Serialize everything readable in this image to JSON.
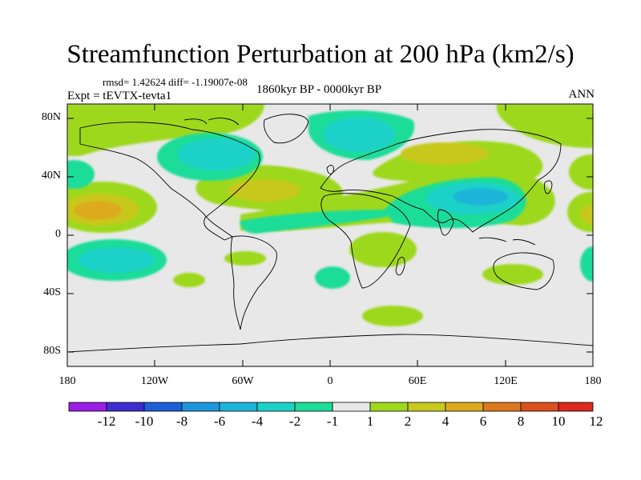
{
  "title": "Streamfunction Perturbation at 200 hPa (km2/s)",
  "stats_line": "rmsd= 1.42624 diff= -1.19007e-08",
  "experiment": "Expt = tEVTX-tevta1",
  "period": "1860kyr BP - 0000kyr BP",
  "season": "ANN",
  "axes": {
    "y_ticks": [
      {
        "label": "80N",
        "lat": 80
      },
      {
        "label": "40N",
        "lat": 40
      },
      {
        "label": "0",
        "lat": 0
      },
      {
        "label": "40S",
        "lat": -40
      },
      {
        "label": "80S",
        "lat": -80
      }
    ],
    "x_ticks": [
      {
        "label": "180",
        "lon": -180
      },
      {
        "label": "120W",
        "lon": -120
      },
      {
        "label": "60W",
        "lon": -60
      },
      {
        "label": "0",
        "lon": 0
      },
      {
        "label": "60E",
        "lon": 60
      },
      {
        "label": "120E",
        "lon": 120
      },
      {
        "label": "180",
        "lon": 180
      }
    ],
    "lat_range": [
      -90,
      90
    ],
    "lon_range": [
      -180,
      180
    ]
  },
  "colorbar": {
    "labels": [
      "-12",
      "-10",
      "-8",
      "-6",
      "-4",
      "-2",
      "-1",
      "1",
      "2",
      "4",
      "6",
      "8",
      "10",
      "12"
    ],
    "colors": [
      "#9a1ee6",
      "#3c2ed0",
      "#1e5fd8",
      "#1e96dc",
      "#1cb4d8",
      "#1cd2c8",
      "#1edc9a",
      "#e8e8e8",
      "#9ed81e",
      "#c8c81e",
      "#dcaa1e",
      "#dc781e",
      "#dc501e",
      "#dc2a1e"
    ]
  },
  "colors": {
    "background_field": "#e8e8e8",
    "neg_1_2": "#1edc9a",
    "neg_2_4": "#1cd2c8",
    "neg_4_6": "#1cb4d8",
    "pos_1_2": "#9ed81e",
    "pos_2_4": "#c8c81e",
    "pos_4_6": "#dcaa1e"
  }
}
